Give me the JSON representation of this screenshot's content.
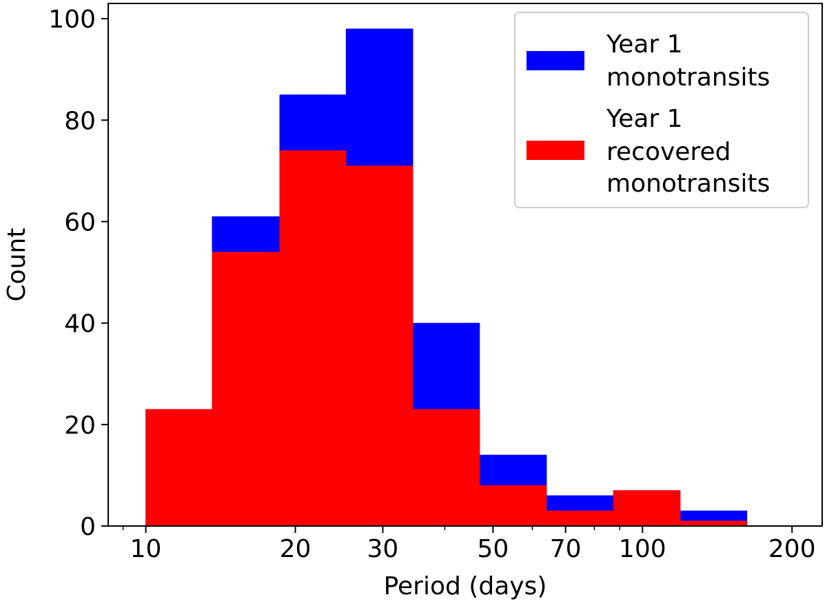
{
  "chart_data": {
    "type": "bar",
    "xlabel": "Period (days)",
    "ylabel": "Count",
    "xscale": "log",
    "xlim": [
      8.4,
      230
    ],
    "ylim": [
      0,
      103
    ],
    "grid": false,
    "legend_position": "top-right",
    "x_ticks": [
      {
        "value": 10,
        "label": "10"
      },
      {
        "value": 20,
        "label": "20"
      },
      {
        "value": 30,
        "label": "30"
      },
      {
        "value": 50,
        "label": "50"
      },
      {
        "value": 70,
        "label": "70"
      },
      {
        "value": 100,
        "label": "100"
      },
      {
        "value": 200,
        "label": "200"
      }
    ],
    "x_minor_ticks": [
      9,
      40,
      60,
      80,
      90
    ],
    "y_ticks": [
      {
        "value": 0,
        "label": "0"
      },
      {
        "value": 20,
        "label": "20"
      },
      {
        "value": 40,
        "label": "40"
      },
      {
        "value": 60,
        "label": "60"
      },
      {
        "value": 80,
        "label": "80"
      },
      {
        "value": 100,
        "label": "100"
      }
    ],
    "bin_edges": [
      10,
      13.6,
      18.6,
      25.3,
      34.5,
      47.0,
      64.1,
      87.4,
      119.1,
      162.3,
      200
    ],
    "series": [
      {
        "name_lines": [
          "Year 1",
          "monotransits"
        ],
        "color": "#0000ff",
        "values": [
          23,
          61,
          85,
          98,
          40,
          14,
          6,
          7,
          3,
          0
        ]
      },
      {
        "name_lines": [
          "Year 1",
          "recovered",
          "monotransits"
        ],
        "color": "#ff0000",
        "values": [
          23,
          54,
          74,
          71,
          23,
          8,
          3,
          7,
          1,
          0
        ]
      }
    ]
  }
}
